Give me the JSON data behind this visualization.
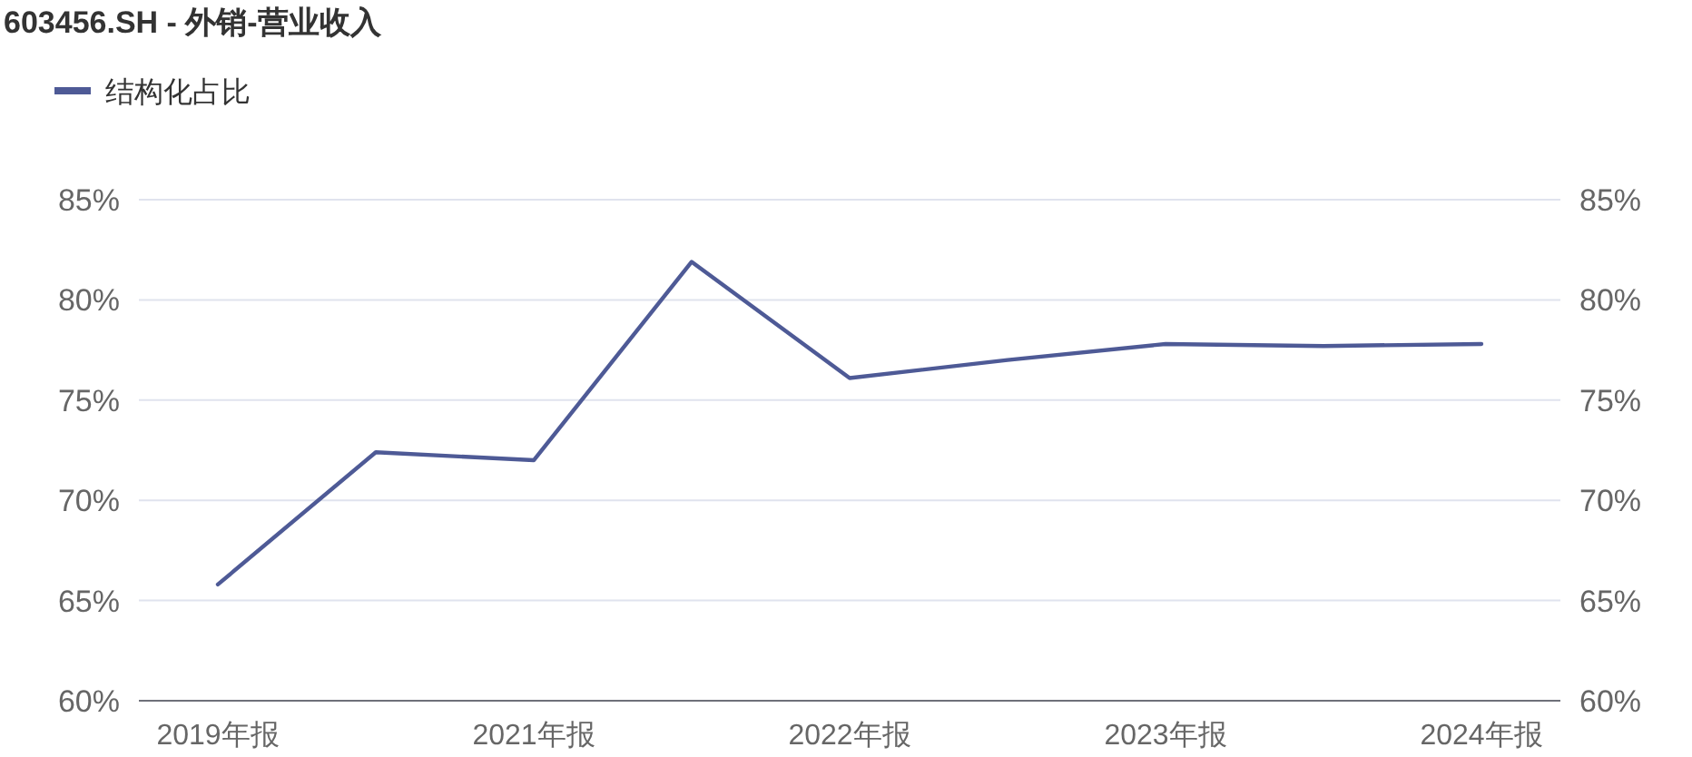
{
  "chart_data": {
    "type": "line",
    "title": "603456.SH - 外销-营业收入",
    "categories": [
      "2019年报",
      null,
      "2021年报",
      null,
      "2022年报",
      null,
      "2023年报",
      null,
      "2024年报"
    ],
    "series": [
      {
        "name": "结构化占比",
        "color": "#4e5a96",
        "values": [
          65.8,
          72.4,
          72.0,
          81.9,
          76.1,
          77.0,
          77.8,
          77.7,
          77.8
        ]
      }
    ],
    "ylim": [
      60,
      85
    ],
    "yticks": [
      {
        "value": 60,
        "label": "60%"
      },
      {
        "value": 65,
        "label": "65%"
      },
      {
        "value": 70,
        "label": "70%"
      },
      {
        "value": 75,
        "label": "75%"
      },
      {
        "value": 80,
        "label": "80%"
      },
      {
        "value": 85,
        "label": "85%"
      }
    ],
    "y2lim": [
      60,
      85
    ],
    "y2ticks": [
      {
        "value": 60,
        "label": "60%"
      },
      {
        "value": 65,
        "label": "65%"
      },
      {
        "value": 70,
        "label": "70%"
      },
      {
        "value": 75,
        "label": "75%"
      },
      {
        "value": 80,
        "label": "80%"
      },
      {
        "value": 85,
        "label": "85%"
      }
    ],
    "grid": "y",
    "legend": "top left",
    "marker": "none",
    "line_style": "solid"
  }
}
